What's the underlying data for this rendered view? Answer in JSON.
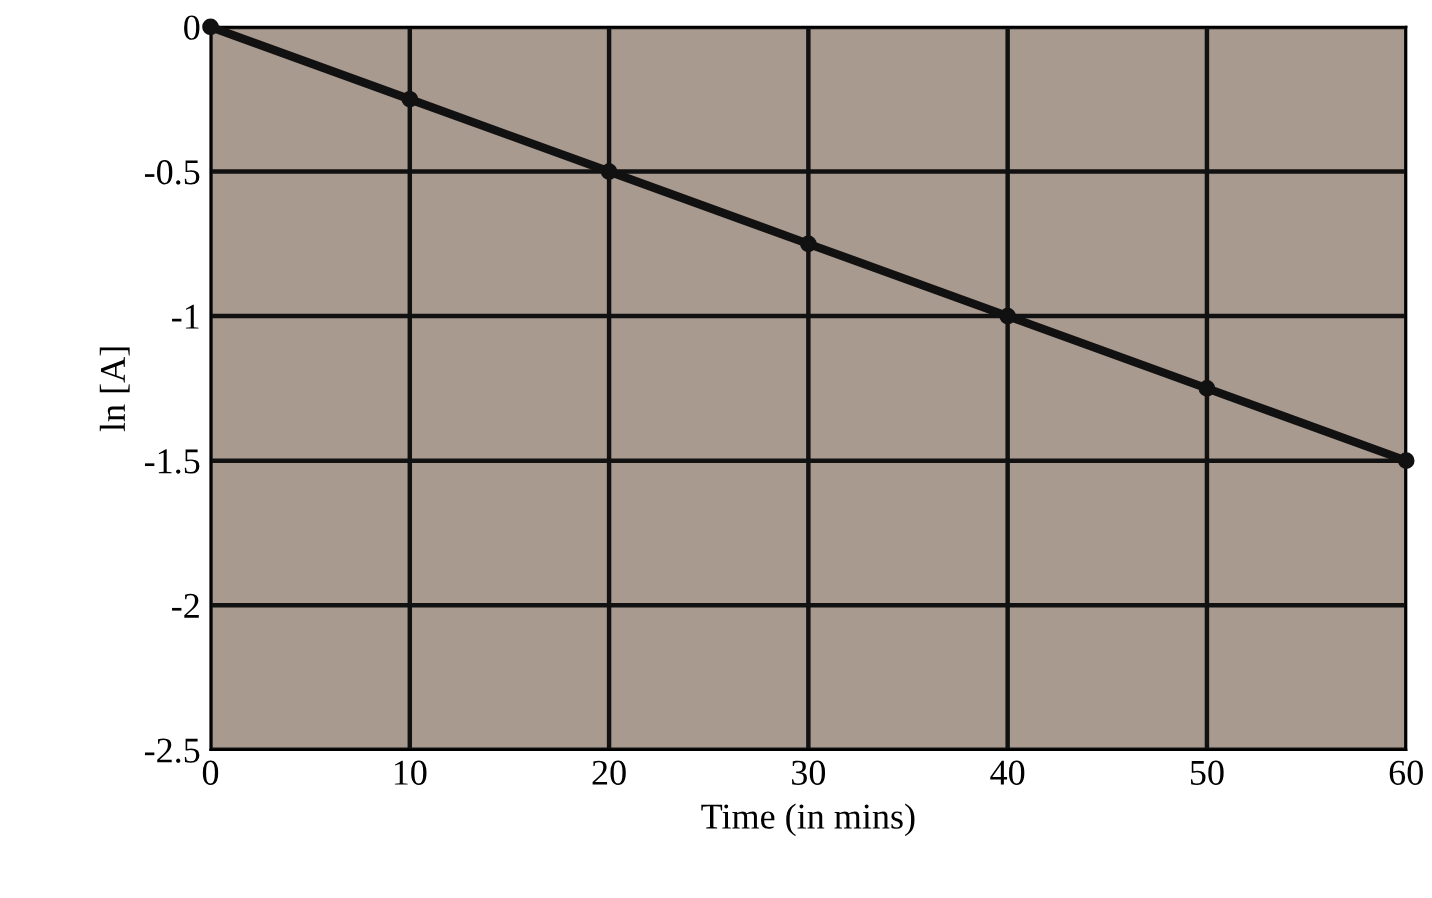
{
  "chart_data": {
    "type": "line",
    "xlabel": "Time (in mins)",
    "ylabel": "ln [A]",
    "x": [
      0,
      10,
      20,
      30,
      40,
      50,
      60
    ],
    "series": [
      {
        "color": "#111111",
        "values": [
          0,
          -0.25,
          -0.5,
          -0.75,
          -1.0,
          -1.25,
          -1.5
        ]
      }
    ],
    "xlim": [
      0,
      60
    ],
    "xticks": [
      0,
      10,
      20,
      30,
      40,
      50,
      60
    ],
    "ylim": [
      -2.5,
      0
    ],
    "yticks": [
      -2.5,
      -2,
      -1.5,
      -1,
      -0.5,
      0
    ],
    "grid": true,
    "marker": "circle",
    "line_style": "solid",
    "legend": false
  }
}
